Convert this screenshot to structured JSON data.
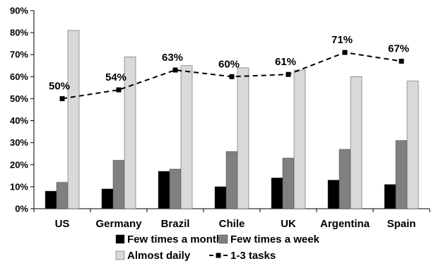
{
  "chart_data": {
    "type": "bar",
    "categories": [
      "US",
      "Germany",
      "Brazil",
      "Chile",
      "UK",
      "Argentina",
      "Spain"
    ],
    "series": [
      {
        "name": "Few times a month",
        "type": "bar",
        "color": "#000000",
        "values": [
          8,
          9,
          17,
          10,
          14,
          13,
          11
        ]
      },
      {
        "name": "Few times a week",
        "type": "bar",
        "color": "#808080",
        "values": [
          12,
          22,
          18,
          26,
          23,
          27,
          31
        ]
      },
      {
        "name": "Almost daily",
        "type": "bar",
        "color": "#d9d9d9",
        "values": [
          81,
          69,
          65,
          64,
          63,
          60,
          58
        ]
      },
      {
        "name": "1-3 tasks",
        "type": "line",
        "style": "dashed",
        "color": "#000000",
        "values": [
          50,
          54,
          63,
          60,
          61,
          71,
          67
        ]
      }
    ],
    "data_labels": [
      "50%",
      "54%",
      "63%",
      "60%",
      "61%",
      "71%",
      "67%"
    ],
    "y_ticks": [
      "0%",
      "10%",
      "20%",
      "30%",
      "40%",
      "50%",
      "60%",
      "70%",
      "80%",
      "90%"
    ],
    "ylim": [
      0,
      90
    ],
    "grid": false,
    "legend_position": "bottom"
  }
}
